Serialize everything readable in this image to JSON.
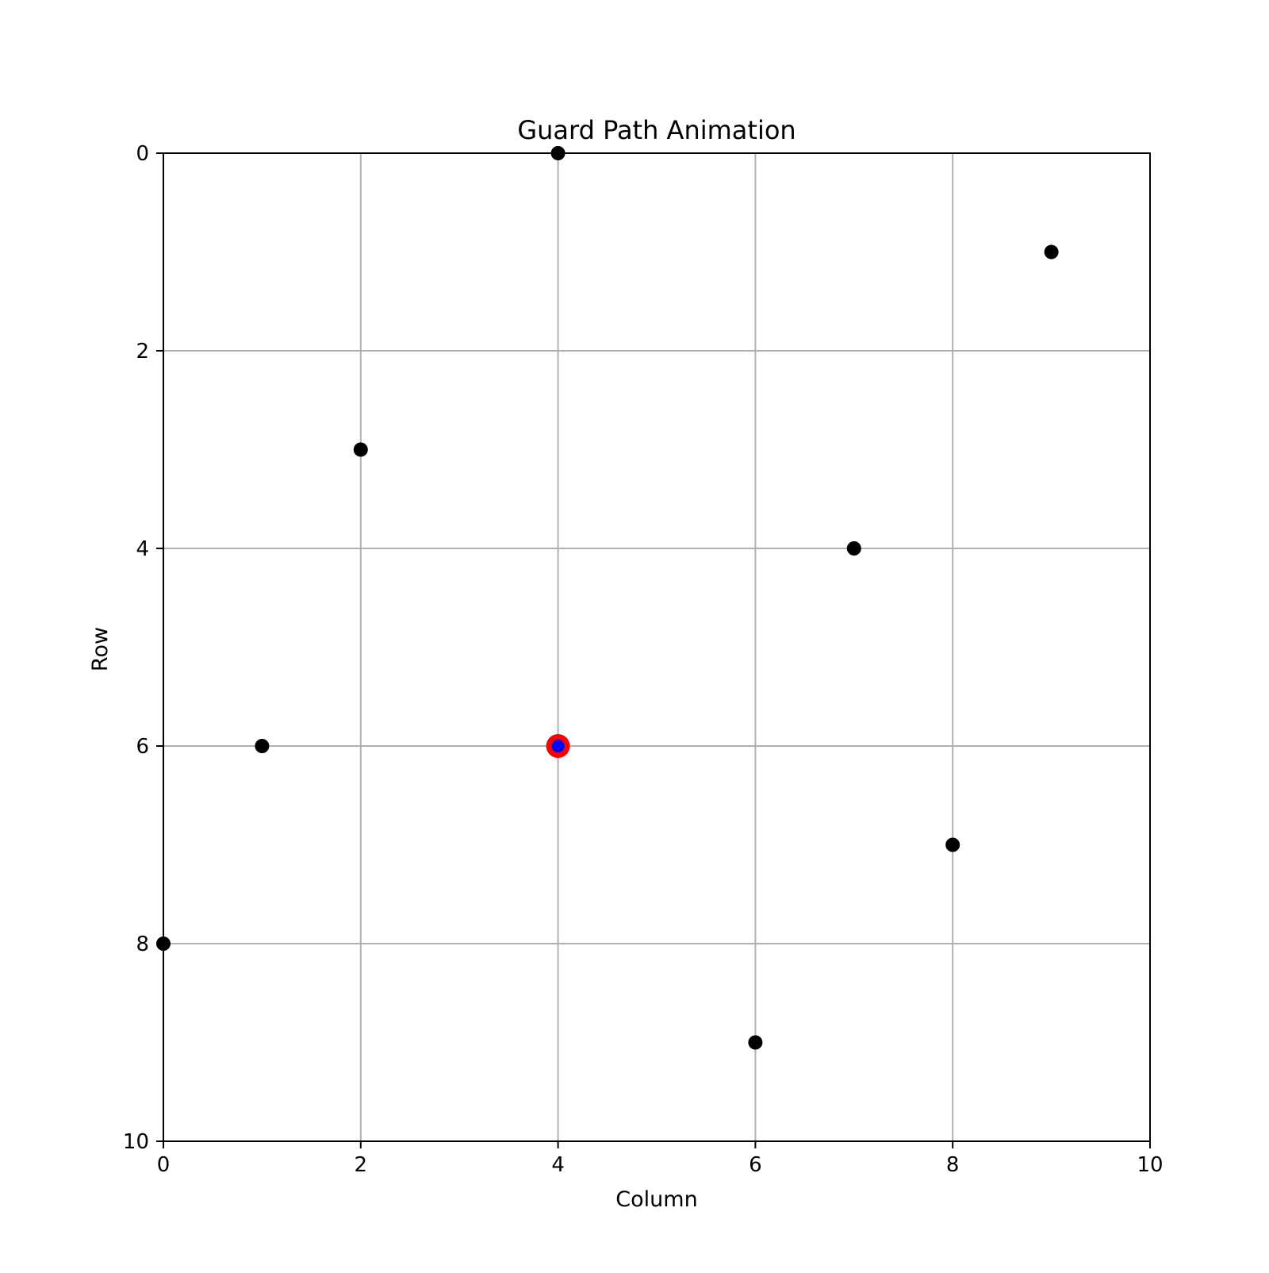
{
  "chart_data": {
    "type": "scatter",
    "title": "Guard Path Animation",
    "xlabel": "Column",
    "ylabel": "Row",
    "xlim": [
      0,
      10
    ],
    "ylim": [
      10,
      0
    ],
    "y_inverted": true,
    "xticks": [
      "0",
      "2",
      "4",
      "6",
      "8",
      "10"
    ],
    "yticks": [
      "0",
      "2",
      "4",
      "6",
      "8",
      "10"
    ],
    "grid": true,
    "series": [
      {
        "role": "obstacles",
        "color": "#000000",
        "points": [
          {
            "x": 4,
            "y": 0
          },
          {
            "x": 9,
            "y": 1
          },
          {
            "x": 2,
            "y": 3
          },
          {
            "x": 7,
            "y": 4
          },
          {
            "x": 1,
            "y": 6
          },
          {
            "x": 8,
            "y": 7
          },
          {
            "x": 0,
            "y": 8
          },
          {
            "x": 6,
            "y": 9
          }
        ]
      },
      {
        "role": "guard-start",
        "color": "#ff0000",
        "points": [
          {
            "x": 4,
            "y": 6
          }
        ]
      },
      {
        "role": "guard-current",
        "color": "#0000ff",
        "points": [
          {
            "x": 4,
            "y": 6
          }
        ]
      }
    ]
  }
}
